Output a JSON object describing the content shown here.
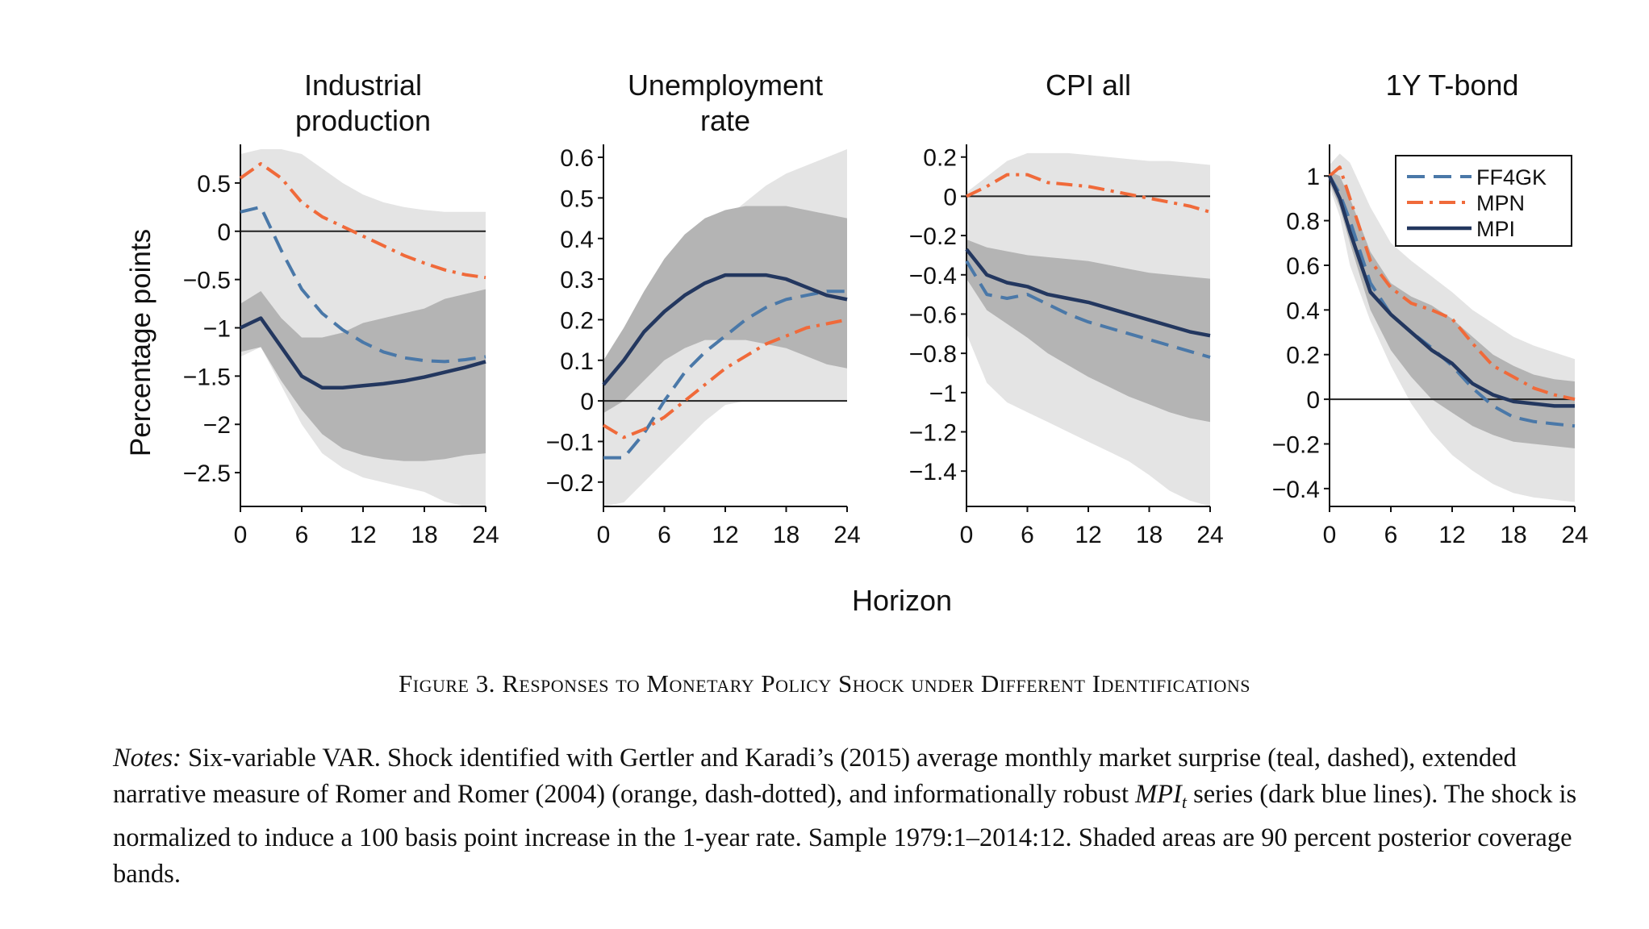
{
  "figure": {
    "ylabel": "Percentage points",
    "xlabel": "Horizon",
    "legend": {
      "placement": "top-right of 1Y T-bond panel",
      "entries": [
        {
          "name": "FF4GK",
          "color": "#4a78a8",
          "style": "dashed"
        },
        {
          "name": "MPN",
          "color": "#f06a3a",
          "style": "dash-dot"
        },
        {
          "name": "MPI",
          "color": "#23375f",
          "style": "solid"
        }
      ]
    },
    "colors": {
      "outer_band": "#e4e4e4",
      "inner_band": "#b4b4b4",
      "zero_line": "#222222"
    }
  },
  "chart_data": [
    {
      "type": "line",
      "title_lines": [
        "Industrial",
        "production"
      ],
      "x": [
        0,
        2,
        4,
        6,
        8,
        10,
        12,
        14,
        16,
        18,
        20,
        22,
        24
      ],
      "xticks": [
        0,
        6,
        12,
        18,
        24
      ],
      "xlim": [
        0,
        24
      ],
      "ylim": [
        -2.85,
        0.85
      ],
      "yticks": [
        0.5,
        0,
        -0.5,
        -1,
        -1.5,
        -2,
        -2.5
      ],
      "ytick_labels": [
        "0.5",
        "0",
        "−0.5",
        "−1",
        "−1.5",
        "−2",
        "−2.5"
      ],
      "grid": false,
      "series": [
        {
          "name": "FF4GK",
          "values": [
            0.2,
            0.25,
            -0.2,
            -0.6,
            -0.85,
            -1.02,
            -1.15,
            -1.25,
            -1.31,
            -1.34,
            -1.35,
            -1.33,
            -1.3
          ]
        },
        {
          "name": "MPN",
          "values": [
            0.55,
            0.7,
            0.55,
            0.3,
            0.15,
            0.05,
            -0.05,
            -0.15,
            -0.25,
            -0.33,
            -0.4,
            -0.45,
            -0.48
          ]
        },
        {
          "name": "MPI",
          "values": [
            -1.0,
            -0.9,
            -1.2,
            -1.5,
            -1.62,
            -1.62,
            -1.6,
            -1.58,
            -1.55,
            -1.51,
            -1.46,
            -1.41,
            -1.35
          ]
        }
      ],
      "bands": [
        {
          "kind": "outer",
          "lower": [
            -1.3,
            -1.2,
            -1.6,
            -2.0,
            -2.3,
            -2.45,
            -2.55,
            -2.6,
            -2.65,
            -2.7,
            -2.8,
            -2.85,
            -2.85
          ],
          "upper": [
            0.8,
            0.85,
            0.85,
            0.8,
            0.65,
            0.5,
            0.38,
            0.3,
            0.25,
            0.22,
            0.2,
            0.2,
            0.2
          ]
        },
        {
          "kind": "inner",
          "lower": [
            -1.25,
            -1.2,
            -1.55,
            -1.85,
            -2.1,
            -2.25,
            -2.32,
            -2.36,
            -2.38,
            -2.38,
            -2.36,
            -2.32,
            -2.3
          ]
        },
        {
          "kind": "inner-top",
          "upper": [
            -0.75,
            -0.62,
            -0.9,
            -1.1,
            -1.1,
            -1.05,
            -0.95,
            -0.9,
            -0.85,
            -0.8,
            -0.7,
            -0.65,
            -0.6
          ]
        }
      ]
    },
    {
      "type": "line",
      "title_lines": [
        "Unemployment",
        "rate"
      ],
      "x": [
        0,
        2,
        4,
        6,
        8,
        10,
        12,
        14,
        16,
        18,
        20,
        22,
        24
      ],
      "xticks": [
        0,
        6,
        12,
        18,
        24
      ],
      "xlim": [
        0,
        24
      ],
      "ylim": [
        -0.26,
        0.62
      ],
      "yticks": [
        0.6,
        0.5,
        0.4,
        0.3,
        0.2,
        0.1,
        0,
        -0.1,
        -0.2
      ],
      "ytick_labels": [
        "0.6",
        "0.5",
        "0.4",
        "0.3",
        "0.2",
        "0.1",
        "0",
        "−0.1",
        "−0.2"
      ],
      "grid": false,
      "series": [
        {
          "name": "FF4GK",
          "values": [
            -0.14,
            -0.14,
            -0.08,
            0.0,
            0.07,
            0.12,
            0.16,
            0.2,
            0.23,
            0.25,
            0.26,
            0.27,
            0.27
          ]
        },
        {
          "name": "MPN",
          "values": [
            -0.06,
            -0.09,
            -0.07,
            -0.04,
            0.0,
            0.04,
            0.08,
            0.11,
            0.14,
            0.16,
            0.18,
            0.19,
            0.2
          ]
        },
        {
          "name": "MPI",
          "values": [
            0.04,
            0.1,
            0.17,
            0.22,
            0.26,
            0.29,
            0.31,
            0.31,
            0.31,
            0.3,
            0.28,
            0.26,
            0.25
          ]
        }
      ],
      "bands": [
        {
          "kind": "outer",
          "lower": [
            -0.26,
            -0.25,
            -0.2,
            -0.15,
            -0.1,
            -0.05,
            -0.01,
            0.0,
            0.0,
            0.0,
            0.0,
            0.0,
            0.0
          ],
          "upper": [
            0.05,
            0.12,
            0.22,
            0.3,
            0.36,
            0.41,
            0.45,
            0.49,
            0.53,
            0.56,
            0.58,
            0.6,
            0.62
          ]
        },
        {
          "kind": "inner",
          "lower": [
            -0.03,
            0.0,
            0.05,
            0.1,
            0.13,
            0.15,
            0.15,
            0.15,
            0.14,
            0.13,
            0.11,
            0.09,
            0.08
          ],
          "upper": [
            0.1,
            0.18,
            0.27,
            0.35,
            0.41,
            0.45,
            0.47,
            0.48,
            0.48,
            0.48,
            0.47,
            0.46,
            0.45
          ]
        }
      ]
    },
    {
      "type": "line",
      "title_lines": [
        "CPI all"
      ],
      "x": [
        0,
        2,
        4,
        6,
        8,
        10,
        12,
        14,
        16,
        18,
        20,
        22,
        24
      ],
      "xticks": [
        0,
        6,
        12,
        18,
        24
      ],
      "xlim": [
        0,
        24
      ],
      "ylim": [
        -1.58,
        0.24
      ],
      "yticks": [
        0.2,
        0,
        -0.2,
        -0.4,
        -0.6,
        -0.8,
        -1,
        -1.2,
        -1.4
      ],
      "ytick_labels": [
        "0.2",
        "0",
        "−0.2",
        "−0.4",
        "−0.6",
        "−0.8",
        "−1",
        "−1.2",
        "−1.4"
      ],
      "grid": false,
      "series": [
        {
          "name": "FF4GK",
          "values": [
            -0.33,
            -0.5,
            -0.52,
            -0.5,
            -0.55,
            -0.6,
            -0.64,
            -0.67,
            -0.7,
            -0.73,
            -0.76,
            -0.79,
            -0.82
          ]
        },
        {
          "name": "MPN",
          "values": [
            0.0,
            0.05,
            0.11,
            0.11,
            0.07,
            0.06,
            0.05,
            0.03,
            0.01,
            -0.01,
            -0.03,
            -0.05,
            -0.08
          ]
        },
        {
          "name": "MPI",
          "values": [
            -0.27,
            -0.4,
            -0.44,
            -0.46,
            -0.5,
            -0.52,
            -0.54,
            -0.57,
            -0.6,
            -0.63,
            -0.66,
            -0.69,
            -0.71
          ]
        }
      ],
      "bands": [
        {
          "kind": "outer",
          "lower": [
            -0.7,
            -0.95,
            -1.05,
            -1.1,
            -1.15,
            -1.2,
            -1.25,
            -1.3,
            -1.35,
            -1.42,
            -1.5,
            -1.55,
            -1.58
          ],
          "upper": [
            0.02,
            0.1,
            0.18,
            0.22,
            0.22,
            0.22,
            0.21,
            0.2,
            0.19,
            0.18,
            0.18,
            0.17,
            0.16
          ]
        },
        {
          "kind": "inner",
          "lower": [
            -0.42,
            -0.58,
            -0.65,
            -0.72,
            -0.8,
            -0.86,
            -0.92,
            -0.97,
            -1.02,
            -1.06,
            -1.1,
            -1.13,
            -1.15
          ],
          "upper": [
            -0.22,
            -0.26,
            -0.28,
            -0.3,
            -0.31,
            -0.32,
            -0.33,
            -0.35,
            -0.37,
            -0.39,
            -0.4,
            -0.41,
            -0.42
          ]
        }
      ]
    },
    {
      "type": "line",
      "title_lines": [
        "1Y T-bond"
      ],
      "x": [
        0,
        1,
        2,
        4,
        6,
        8,
        10,
        12,
        14,
        16,
        18,
        20,
        22,
        24
      ],
      "xticks": [
        0,
        6,
        12,
        18,
        24
      ],
      "xlim": [
        0,
        24
      ],
      "ylim": [
        -0.48,
        1.12
      ],
      "yticks": [
        1,
        0.8,
        0.6,
        0.4,
        0.2,
        0,
        -0.2,
        -0.4
      ],
      "ytick_labels": [
        "1",
        "0.8",
        "0.6",
        "0.4",
        "0.2",
        "0",
        "−0.2",
        "−0.4"
      ],
      "grid": false,
      "series": [
        {
          "name": "FF4GK",
          "values": [
            1.0,
            0.92,
            0.8,
            0.52,
            0.38,
            0.3,
            0.23,
            0.15,
            0.05,
            -0.03,
            -0.08,
            -0.1,
            -0.11,
            -0.12
          ]
        },
        {
          "name": "MPN",
          "values": [
            1.0,
            1.04,
            0.9,
            0.62,
            0.5,
            0.43,
            0.4,
            0.36,
            0.25,
            0.15,
            0.1,
            0.05,
            0.02,
            0.0
          ]
        },
        {
          "name": "MPI",
          "values": [
            1.0,
            0.9,
            0.75,
            0.48,
            0.38,
            0.3,
            0.22,
            0.16,
            0.07,
            0.02,
            -0.01,
            -0.02,
            -0.03,
            -0.03
          ]
        }
      ],
      "bands": [
        {
          "kind": "outer",
          "lower": [
            0.95,
            0.82,
            0.6,
            0.35,
            0.15,
            -0.02,
            -0.15,
            -0.25,
            -0.32,
            -0.38,
            -0.42,
            -0.44,
            -0.45,
            -0.46
          ],
          "upper": [
            1.05,
            1.1,
            1.06,
            0.86,
            0.7,
            0.62,
            0.55,
            0.48,
            0.4,
            0.34,
            0.28,
            0.24,
            0.21,
            0.18
          ]
        },
        {
          "kind": "inner",
          "lower": [
            0.97,
            0.86,
            0.7,
            0.4,
            0.22,
            0.1,
            0.0,
            -0.06,
            -0.12,
            -0.16,
            -0.19,
            -0.2,
            -0.21,
            -0.22
          ],
          "upper": [
            1.02,
            1.0,
            0.9,
            0.66,
            0.52,
            0.46,
            0.42,
            0.36,
            0.28,
            0.2,
            0.15,
            0.11,
            0.09,
            0.08
          ]
        }
      ]
    }
  ],
  "caption": {
    "title": "Figure 3.  Responses to Monetary Policy Shock under Different Identifications",
    "notes_lead": "Notes:",
    "notes_text_1": " Six-variable VAR. Shock identified with Gertler and Karadi’s (2015) average monthly market surprise (teal, dashed), extended narrative measure of Romer and Romer (2004) (orange, dash-dotted), and informationally robust ",
    "notes_mpi": "MPI",
    "notes_mpi_sub": "t",
    "notes_text_2": " series (dark blue lines). The shock is normalized to induce a 100 basis point increase in the 1-year rate. Sample 1979:1–2014:12. Shaded areas are 90 percent posterior coverage bands."
  }
}
